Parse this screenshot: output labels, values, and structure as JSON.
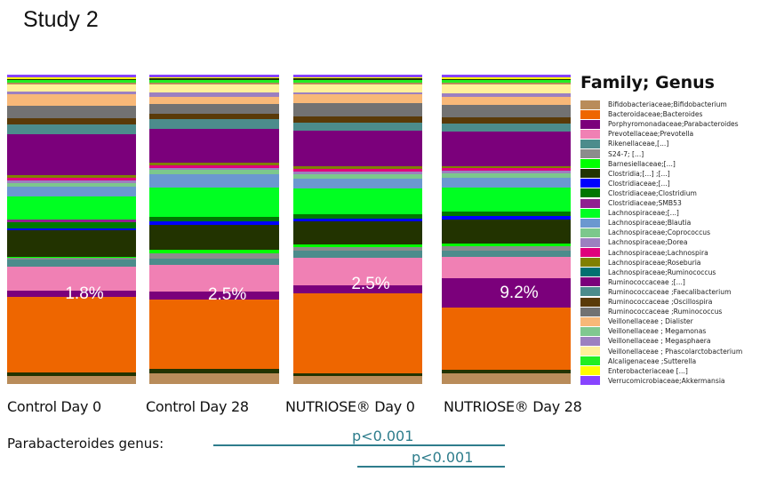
{
  "chart_data": {
    "type": "bar",
    "stacked": true,
    "title": "Study 2",
    "legend_title": "Family; Genus",
    "legend_position": "right",
    "categories": [
      "Control Day 0",
      "Control Day 28",
      "NUTRIOSE® Day 0",
      "NUTRIOSE® Day 28"
    ],
    "legend": [
      {
        "label": "Bifidobacteriaceae;Bifidobacterium",
        "color": "#b98c5a"
      },
      {
        "label": "Bacteroidaceae;Bacteroides",
        "color": "#ee6600"
      },
      {
        "label": "Porphyromonadaceae;Parabacteroides",
        "color": "#7b007b"
      },
      {
        "label": "Prevotellaceae;Prevotella",
        "color": "#f080b4"
      },
      {
        "label": "Rikenellaceae,[...]",
        "color": "#4c8c8c"
      },
      {
        "label": "S24-7; [...]",
        "color": "#8c8c8c"
      },
      {
        "label": "Barnesiellaceae;[...]",
        "color": "#00ff00"
      },
      {
        "label": "Clostridia;[...] ;[...]",
        "color": "#223300"
      },
      {
        "label": "Clostridiaceae;[...]",
        "color": "#0000ff"
      },
      {
        "label": "Clostridiaceae;Clostridium",
        "color": "#007700"
      },
      {
        "label": "Clostridiaceae;SMB53",
        "color": "#902090"
      },
      {
        "label": "Lachnospiraceae;[...]",
        "color": "#00ff22"
      },
      {
        "label": "Lachnospiraceae;Blautia",
        "color": "#6b98d0"
      },
      {
        "label": "Lachnospiraceae;Coprococcus",
        "color": "#7cc88c"
      },
      {
        "label": "Lachnospiraceae;Dorea",
        "color": "#9c80c0"
      },
      {
        "label": "Lachnospiraceae;Lachnospira",
        "color": "#e0007c"
      },
      {
        "label": "Lachnospiraceae;Roseburia",
        "color": "#808000"
      },
      {
        "label": "Lachnospiraceae;Ruminococcus",
        "color": "#007070"
      },
      {
        "label": "Ruminococcaceae ;[...]",
        "color": "#7b007b"
      },
      {
        "label": "Ruminococcaceae ;Faecalibacterium",
        "color": "#4c8c8c"
      },
      {
        "label": "Ruminococcaceae ;Oscillospira",
        "color": "#5a3a08"
      },
      {
        "label": "Ruminococcaceae ;Ruminococcus",
        "color": "#727272"
      },
      {
        "label": "Veillonellaceae ; Dialister",
        "color": "#f8b878"
      },
      {
        "label": "Veillonellaceae ; Megamonas",
        "color": "#80c890"
      },
      {
        "label": "Veillonellaceae ; Megasphaera",
        "color": "#9c80c0"
      },
      {
        "label": "Veillonellaceae ; Phascolarctobacterium",
        "color": "#fff09a"
      },
      {
        "label": "Alcaligenaceae ;Sutterella",
        "color": "#22ee22"
      },
      {
        "label": "Enterobacteriaceae  [...]",
        "color": "#ffff00"
      },
      {
        "label": "Verrucomicrobiaceae;Akkermansia",
        "color": "#8844ff"
      }
    ],
    "series_bottom_to_top": [
      [
        [
          0,
          27
        ],
        [
          7,
          10
        ],
        [
          1,
          244
        ],
        [
          2,
          20
        ],
        [
          3,
          78
        ],
        [
          4,
          23
        ],
        [
          5,
          6
        ],
        [
          6,
          4
        ],
        [
          7,
          85
        ],
        [
          8,
          8
        ],
        [
          9,
          20
        ],
        [
          10,
          7
        ],
        [
          11,
          77
        ],
        [
          12,
          30
        ],
        [
          13,
          13
        ],
        [
          14,
          8
        ],
        [
          15,
          8
        ],
        [
          16,
          9
        ],
        [
          18,
          132
        ],
        [
          19,
          33
        ],
        [
          20,
          20
        ],
        [
          21,
          40
        ],
        [
          22,
          37
        ],
        [
          24,
          10
        ],
        [
          25,
          23
        ],
        [
          0,
          5
        ],
        [
          26,
          8
        ],
        [
          7,
          4
        ],
        [
          27,
          5
        ],
        [
          28,
          8
        ]
      ],
      [
        [
          0,
          37
        ],
        [
          7,
          13
        ],
        [
          1,
          232
        ],
        [
          2,
          27
        ],
        [
          3,
          88
        ],
        [
          4,
          20
        ],
        [
          5,
          20
        ],
        [
          6,
          12
        ],
        [
          7,
          83
        ],
        [
          8,
          10
        ],
        [
          9,
          17
        ],
        [
          11,
          98
        ],
        [
          12,
          42
        ],
        [
          13,
          15
        ],
        [
          14,
          8
        ],
        [
          15,
          8
        ],
        [
          16,
          9
        ],
        [
          18,
          112
        ],
        [
          19,
          33
        ],
        [
          20,
          18
        ],
        [
          21,
          32
        ],
        [
          22,
          25
        ],
        [
          24,
          15
        ],
        [
          25,
          27
        ],
        [
          0,
          6
        ],
        [
          26,
          8
        ],
        [
          7,
          5
        ],
        [
          27,
          5
        ],
        [
          28,
          7
        ]
      ],
      [
        [
          0,
          27
        ],
        [
          7,
          10
        ],
        [
          1,
          265
        ],
        [
          2,
          27
        ],
        [
          3,
          93
        ],
        [
          4,
          22
        ],
        [
          5,
          14
        ],
        [
          6,
          9
        ],
        [
          7,
          75
        ],
        [
          8,
          10
        ],
        [
          9,
          15
        ],
        [
          11,
          87
        ],
        [
          12,
          33
        ],
        [
          13,
          15
        ],
        [
          14,
          8
        ],
        [
          15,
          9
        ],
        [
          16,
          8
        ],
        [
          18,
          120
        ],
        [
          19,
          27
        ],
        [
          20,
          20
        ],
        [
          21,
          43
        ],
        [
          22,
          30
        ],
        [
          24,
          8
        ],
        [
          25,
          27
        ],
        [
          0,
          6
        ],
        [
          26,
          8
        ],
        [
          7,
          5
        ],
        [
          27,
          5
        ],
        [
          28,
          7
        ]
      ],
      [
        [
          0,
          35
        ],
        [
          7,
          14
        ],
        [
          1,
          208
        ],
        [
          2,
          97
        ],
        [
          3,
          73
        ],
        [
          4,
          22
        ],
        [
          5,
          14
        ],
        [
          6,
          9
        ],
        [
          7,
          80
        ],
        [
          8,
          12
        ],
        [
          9,
          15
        ],
        [
          11,
          80
        ],
        [
          12,
          33
        ],
        [
          13,
          15
        ],
        [
          14,
          8
        ],
        [
          15,
          9
        ],
        [
          16,
          8
        ],
        [
          18,
          115
        ],
        [
          19,
          27
        ],
        [
          20,
          21
        ],
        [
          21,
          42
        ],
        [
          22,
          27
        ],
        [
          24,
          13
        ],
        [
          25,
          28
        ],
        [
          0,
          6
        ],
        [
          26,
          9
        ],
        [
          7,
          5
        ],
        [
          27,
          5
        ],
        [
          28,
          8
        ]
      ]
    ],
    "parabacteroides_labels": [
      "1.8%",
      "2.5%",
      "2.5%",
      "9.2%"
    ]
  },
  "significance": {
    "label": "Parabacteroides genus:",
    "comparisons": [
      {
        "from": "Control Day 0",
        "to": "NUTRIOSE® Day 28",
        "text": "p<0.001"
      },
      {
        "from": "NUTRIOSE® Day 0",
        "to": "NUTRIOSE® Day 28",
        "text": "p<0.001"
      }
    ]
  }
}
